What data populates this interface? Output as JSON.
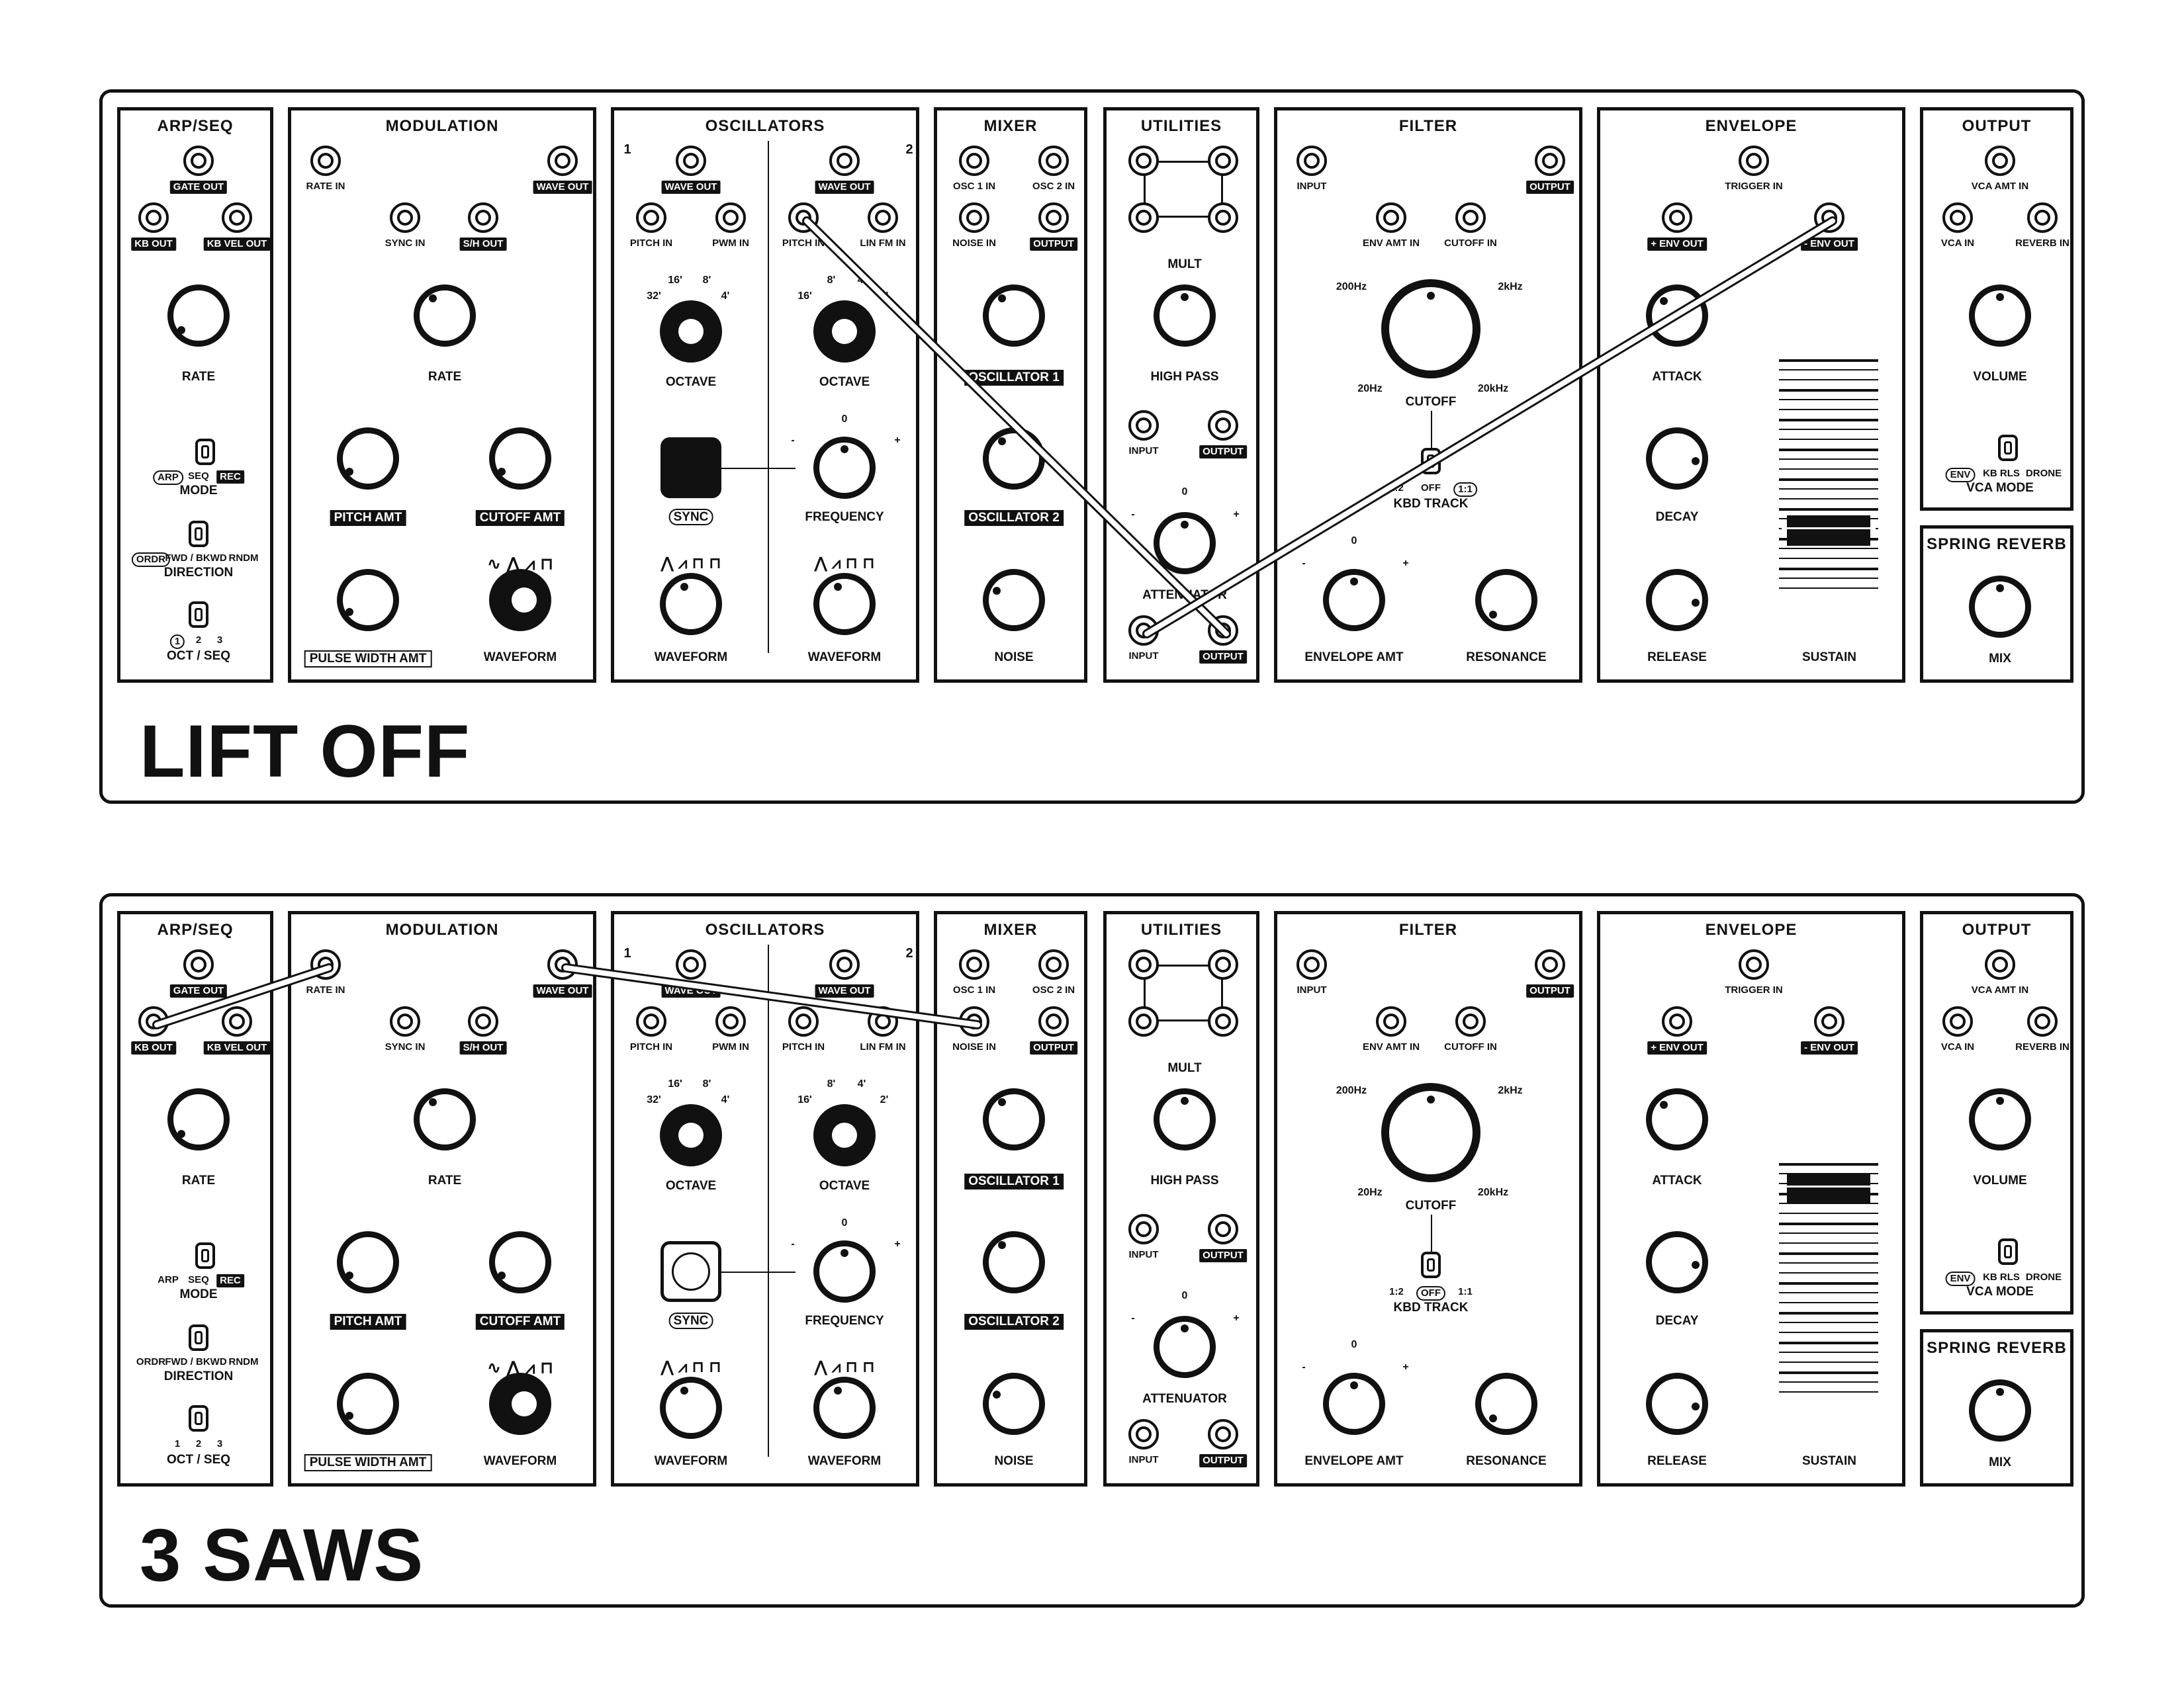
{
  "patches": [
    {
      "title": "LIFT OFF",
      "cables": [
        {
          "from": "osc2_pitch_in",
          "to": "util_output_bottom"
        },
        {
          "from": "util_input_bottom",
          "to": "env_minus_out"
        }
      ]
    },
    {
      "title": "3 SAWS",
      "cables": [
        {
          "from": "kb_out",
          "to": "rate_in"
        },
        {
          "from": "mod_wave_out",
          "to": "noise_in"
        }
      ]
    }
  ],
  "modules": {
    "arp": {
      "title": "ARP/SEQ",
      "gate_out": "GATE OUT",
      "kb_out": "KB OUT",
      "kb_vel_out": "KB VEL OUT",
      "rate": "RATE",
      "mode_opts": [
        "ARP",
        "SEQ",
        "REC"
      ],
      "mode": "MODE",
      "dir_opts": [
        "ORDR",
        "FWD / BKWD",
        "RNDM"
      ],
      "direction": "DIRECTION",
      "oct_opts": [
        "1",
        "2",
        "3"
      ],
      "oct": "OCT / SEQ"
    },
    "modulation": {
      "title": "MODULATION",
      "rate_in": "RATE IN",
      "wave_out": "WAVE OUT",
      "sync_in": "SYNC IN",
      "sh_out": "S/H OUT",
      "rate": "RATE",
      "pitch_amt": "PITCH AMT",
      "cutoff_amt": "CUTOFF AMT",
      "pulse_width_amt": "PULSE WIDTH AMT",
      "waveform": "WAVEFORM",
      "wave_symbols": "∿ ⋀ ⩘ ⊓"
    },
    "osc": {
      "title": "OSCILLATORS",
      "osc1_num": "1",
      "osc2_num": "2",
      "wave_out": "WAVE OUT",
      "pitch_in": "PITCH IN",
      "pwm_in": "PWM IN",
      "lin_fm_in": "LIN FM IN",
      "oct1_ranges": [
        "32'",
        "16'",
        "8'",
        "4'"
      ],
      "oct2_ranges": [
        "16'",
        "8'",
        "4'",
        "2'"
      ],
      "octave": "OCTAVE",
      "sync": "SYNC",
      "frequency": "FREQUENCY",
      "freq_zero": "0",
      "minus": "-",
      "plus": "+",
      "waveform": "WAVEFORM",
      "wave_symbols": "⋀ ⩘ ⊓ ⊓"
    },
    "mixer": {
      "title": "MIXER",
      "osc1_in": "OSC 1 IN",
      "osc2_in": "OSC 2 IN",
      "noise_in": "NOISE IN",
      "output": "OUTPUT",
      "oscillator1": "OSCILLATOR 1",
      "oscillator2": "OSCILLATOR 2",
      "noise": "NOISE"
    },
    "utilities": {
      "title": "UTILITIES",
      "mult": "MULT",
      "high_pass": "HIGH PASS",
      "input": "INPUT",
      "output": "OUTPUT",
      "attenuator": "ATTENUATOR",
      "att_zero": "0",
      "minus": "-",
      "plus": "+"
    },
    "filter": {
      "title": "FILTER",
      "input": "INPUT",
      "output": "OUTPUT",
      "env_amt_in": "ENV AMT IN",
      "cutoff_in": "CUTOFF IN",
      "f200": "200Hz",
      "f2k": "2kHz",
      "f20": "20Hz",
      "f20k": "20kHz",
      "cutoff": "CUTOFF",
      "kbd_opts": [
        "1:2",
        "OFF",
        "1:1"
      ],
      "kbd_track": "KBD TRACK",
      "env_zero": "0",
      "minus": "-",
      "plus": "+",
      "envelope_amt": "ENVELOPE AMT",
      "resonance": "RESONANCE"
    },
    "envelope": {
      "title": "ENVELOPE",
      "trigger_in": "TRIGGER IN",
      "plus_env_out": "+ ENV OUT",
      "minus_env_out": "- ENV OUT",
      "attack": "ATTACK",
      "decay": "DECAY",
      "release": "RELEASE",
      "sustain": "SUSTAIN"
    },
    "output": {
      "title": "OUTPUT",
      "vca_amt_in": "VCA AMT IN",
      "vca_in": "VCA IN",
      "reverb_in": "REVERB IN",
      "volume": "VOLUME",
      "vca_opts": [
        "ENV",
        "KB RLS",
        "DRONE"
      ],
      "vca_mode": "VCA MODE"
    },
    "reverb": {
      "title": "SPRING REVERB",
      "mix": "MIX"
    }
  },
  "settings": [
    {
      "arp_mode_sel": 0,
      "dir_sel": 0,
      "oct_sel": 0,
      "osc_sync_on": true,
      "kbd_sel": 2,
      "vca_sel": 0,
      "sustain_level": 0.25
    },
    {
      "arp_mode_sel": -1,
      "dir_sel": -1,
      "oct_sel": -1,
      "osc_sync_on": false,
      "kbd_sel": 1,
      "vca_sel": 0,
      "sustain_level": 0.95
    }
  ]
}
